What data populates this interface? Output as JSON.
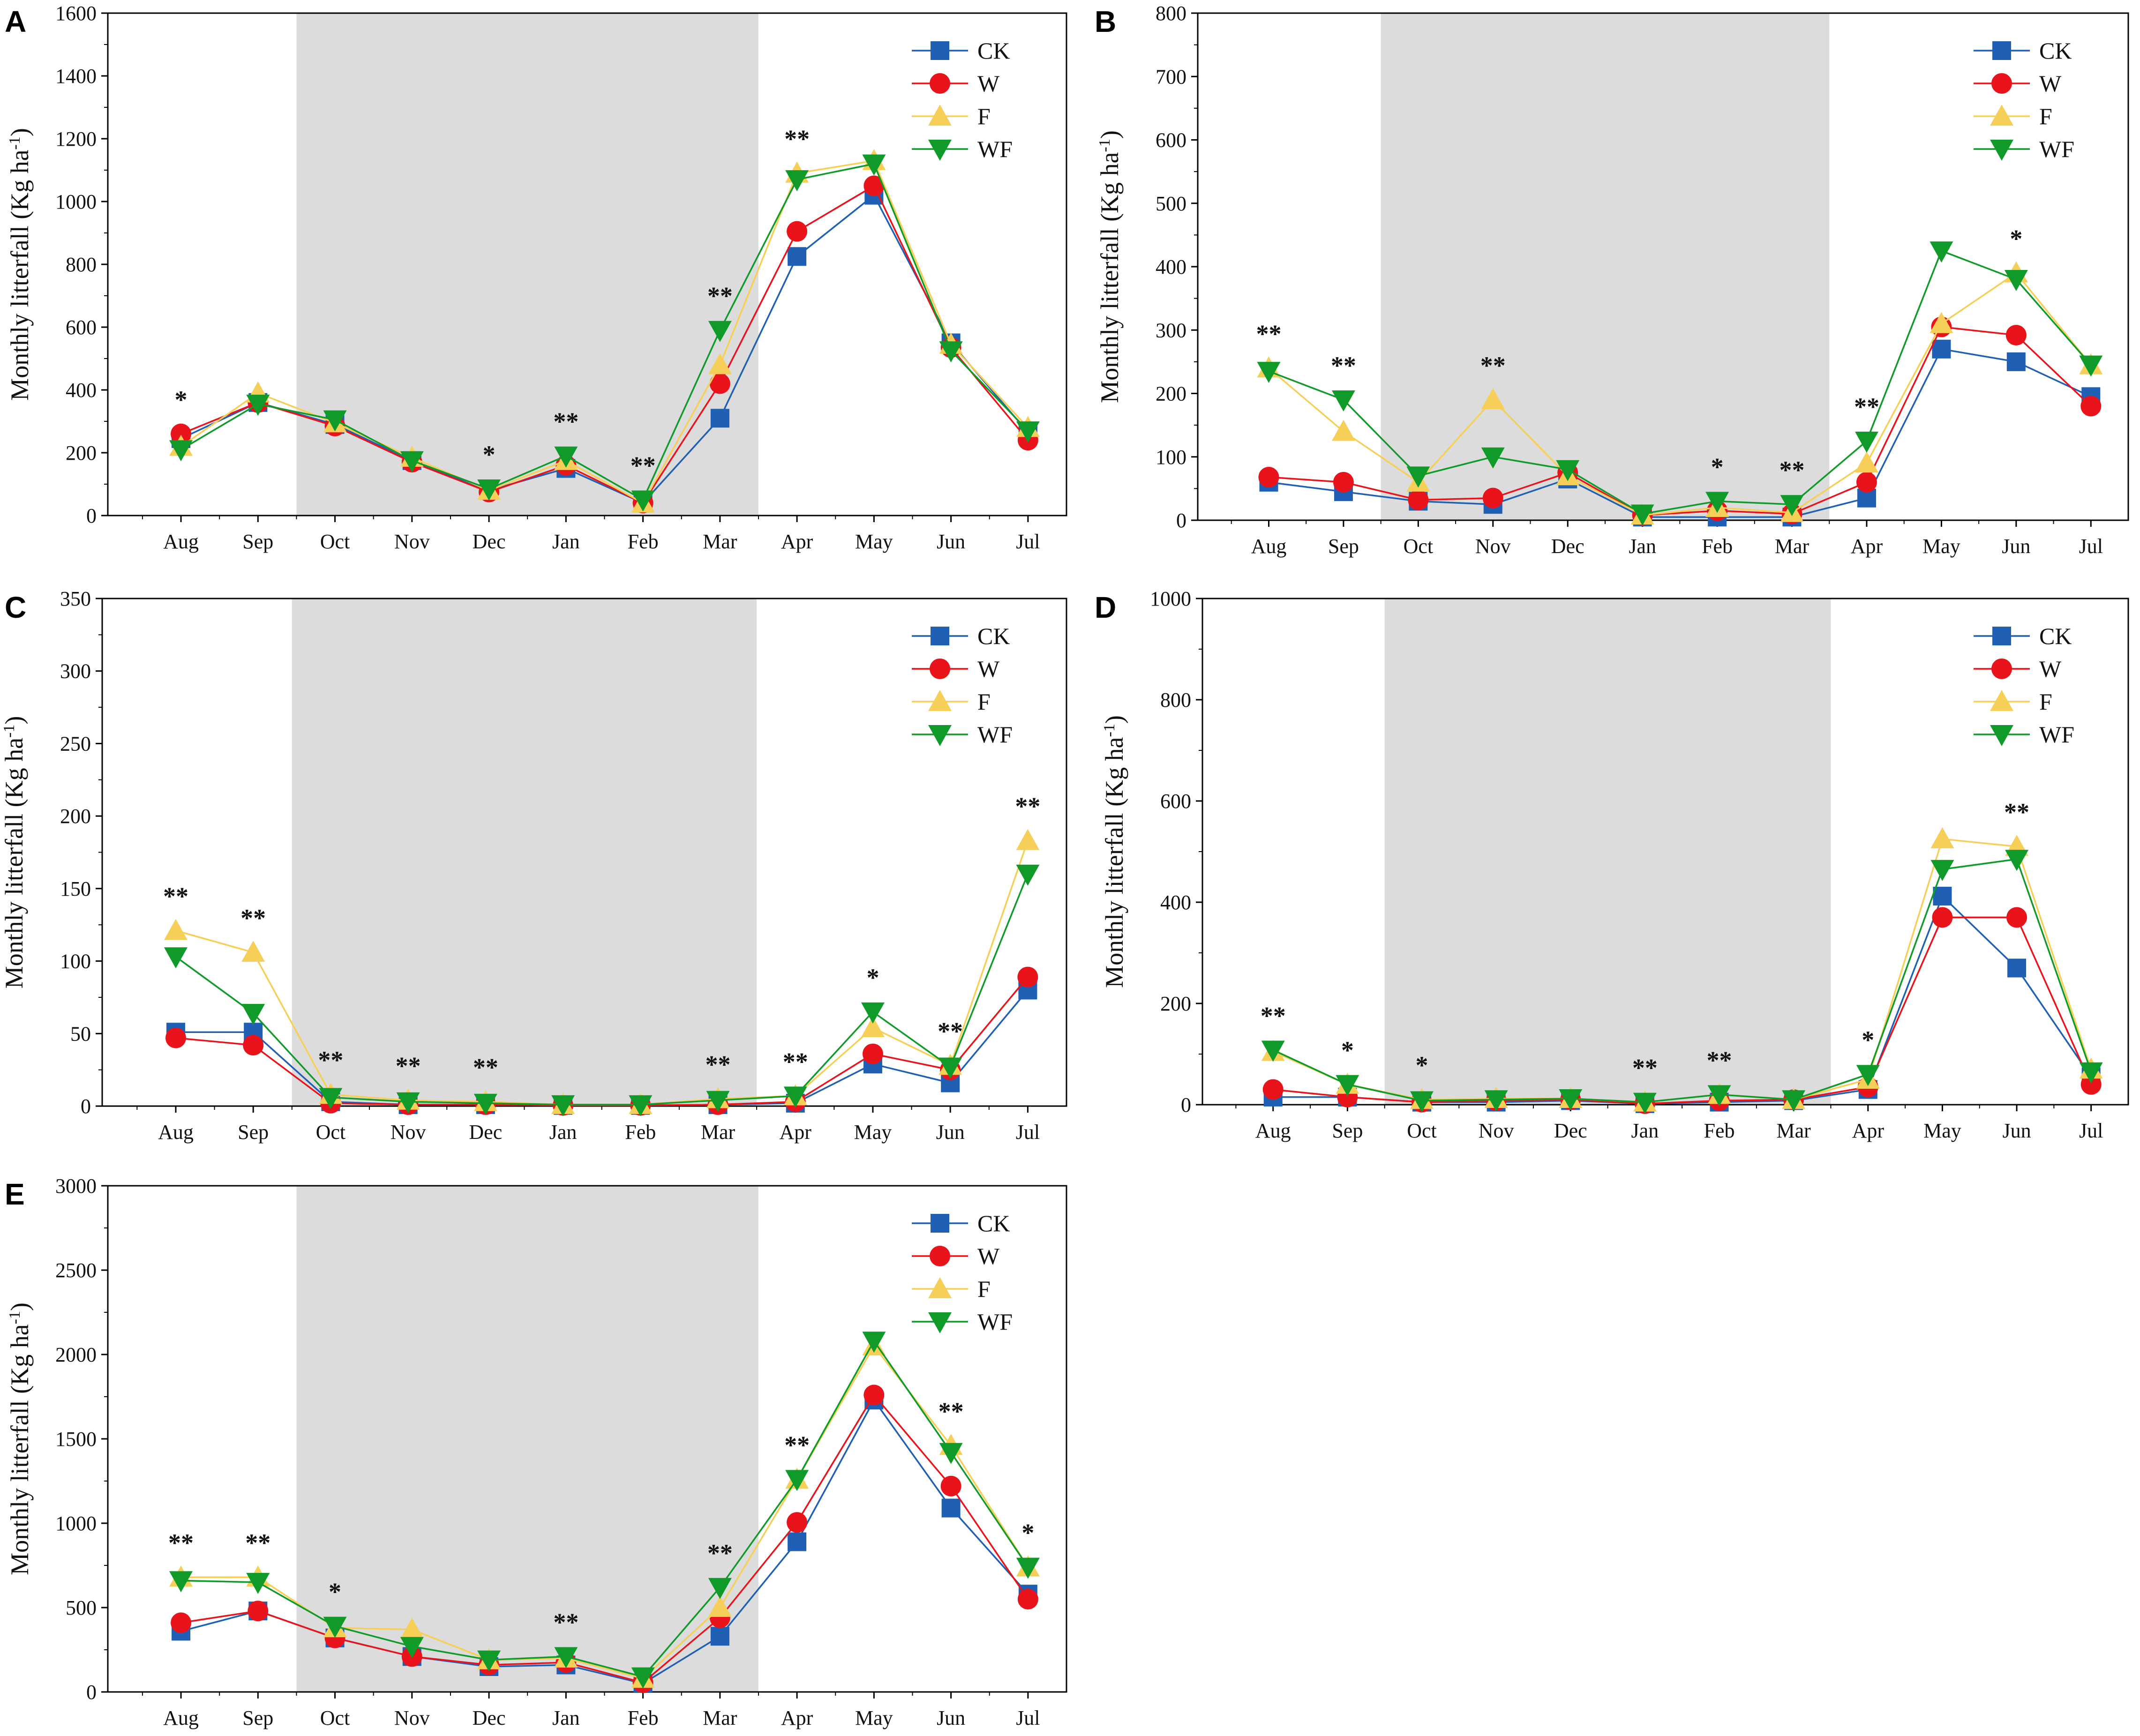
{
  "figure": {
    "months": [
      "Aug",
      "Sep",
      "Oct",
      "Nov",
      "Dec",
      "Jan",
      "Feb",
      "Mar",
      "Apr",
      "May",
      "Jun",
      "Jul"
    ],
    "ylabel_main": "Monthly litterfall (Kg ha",
    "ylabel_sup": "-1",
    "ylabel_close": ")",
    "shade_months": [
      "Oct",
      "Mar"
    ]
  },
  "legend": [
    {
      "name": "CK",
      "color": "#1f5fb4",
      "marker": "square"
    },
    {
      "name": "W",
      "color": "#e8131b",
      "marker": "circle"
    },
    {
      "name": "F",
      "color": "#f5cf57",
      "marker": "triangle-up"
    },
    {
      "name": "WF",
      "color": "#0f9a2a",
      "marker": "triangle-down"
    }
  ],
  "chart_data": [
    {
      "panel": "A",
      "type": "line",
      "ylim": [
        0,
        1600
      ],
      "yticks": [
        "0",
        "200",
        "400",
        "600",
        "800",
        "1000",
        "1200",
        "1400",
        "1600"
      ],
      "series": [
        {
          "name": "CK",
          "values": [
            245,
            360,
            290,
            175,
            80,
            150,
            40,
            310,
            825,
            1020,
            550,
            265
          ]
        },
        {
          "name": "W",
          "values": [
            260,
            360,
            285,
            170,
            75,
            160,
            40,
            420,
            905,
            1050,
            535,
            240
          ]
        },
        {
          "name": "F",
          "values": [
            220,
            390,
            295,
            185,
            80,
            175,
            40,
            480,
            1090,
            1130,
            545,
            280
          ]
        },
        {
          "name": "WF",
          "values": [
            210,
            355,
            305,
            175,
            85,
            190,
            50,
            590,
            1070,
            1120,
            525,
            270
          ]
        }
      ],
      "significance": [
        {
          "month": "Aug",
          "label": "*"
        },
        {
          "month": "Dec",
          "label": "*"
        },
        {
          "month": "Jan",
          "label": "**"
        },
        {
          "month": "Feb",
          "label": "**"
        },
        {
          "month": "Mar",
          "label": "**"
        },
        {
          "month": "Apr",
          "label": "**"
        }
      ]
    },
    {
      "panel": "B",
      "type": "line",
      "ylim": [
        0,
        800
      ],
      "yticks": [
        "0",
        "100",
        "200",
        "300",
        "400",
        "500",
        "600",
        "700",
        "800"
      ],
      "series": [
        {
          "name": "CK",
          "values": [
            60,
            45,
            30,
            25,
            65,
            5,
            5,
            5,
            35,
            270,
            250,
            195
          ]
        },
        {
          "name": "W",
          "values": [
            68,
            60,
            32,
            35,
            75,
            8,
            15,
            10,
            60,
            305,
            292,
            180
          ]
        },
        {
          "name": "F",
          "values": [
            240,
            140,
            60,
            190,
            70,
            8,
            20,
            12,
            90,
            310,
            390,
            245
          ]
        },
        {
          "name": "WF",
          "values": [
            235,
            190,
            70,
            100,
            80,
            10,
            30,
            25,
            125,
            425,
            380,
            245
          ]
        }
      ],
      "significance": [
        {
          "month": "Aug",
          "label": "**"
        },
        {
          "month": "Sep",
          "label": "**"
        },
        {
          "month": "Nov",
          "label": "**"
        },
        {
          "month": "Feb",
          "label": "*"
        },
        {
          "month": "Mar",
          "label": "**"
        },
        {
          "month": "Apr",
          "label": "**"
        },
        {
          "month": "Jun",
          "label": "*"
        }
      ]
    },
    {
      "panel": "C",
      "type": "line",
      "ylim": [
        0,
        350
      ],
      "yticks": [
        "0",
        "50",
        "100",
        "150",
        "200",
        "250",
        "300",
        "350"
      ],
      "series": [
        {
          "name": "CK",
          "values": [
            51,
            51,
            3,
            1,
            1,
            0.5,
            0.5,
            1,
            2,
            29,
            16,
            80
          ]
        },
        {
          "name": "W",
          "values": [
            47,
            42,
            2,
            1,
            1,
            0.5,
            0.5,
            1,
            3,
            36,
            25,
            89
          ]
        },
        {
          "name": "F",
          "values": [
            121,
            106,
            8,
            4,
            3,
            1,
            1,
            5,
            7,
            54,
            28,
            183
          ]
        },
        {
          "name": "WF",
          "values": [
            103,
            64,
            6,
            3,
            2,
            1,
            1,
            4,
            7,
            65,
            27,
            160
          ]
        }
      ],
      "significance": [
        {
          "month": "Aug",
          "label": "**"
        },
        {
          "month": "Sep",
          "label": "**"
        },
        {
          "month": "Oct",
          "label": "**"
        },
        {
          "month": "Nov",
          "label": "**"
        },
        {
          "month": "Dec",
          "label": "**"
        },
        {
          "month": "Mar",
          "label": "**"
        },
        {
          "month": "Apr",
          "label": "**"
        },
        {
          "month": "May",
          "label": "*"
        },
        {
          "month": "Jun",
          "label": "**"
        },
        {
          "month": "Jul",
          "label": "**"
        }
      ]
    },
    {
      "panel": "D",
      "type": "line",
      "ylim": [
        0,
        1000
      ],
      "yticks": [
        "0",
        "200",
        "400",
        "600",
        "800",
        "1000"
      ],
      "series": [
        {
          "name": "CK",
          "values": [
            15,
            15,
            5,
            5,
            8,
            2,
            5,
            8,
            30,
            412,
            270,
            55
          ]
        },
        {
          "name": "W",
          "values": [
            30,
            15,
            5,
            8,
            10,
            2,
            8,
            10,
            35,
            370,
            370,
            40
          ]
        },
        {
          "name": "F",
          "values": [
            105,
            40,
            10,
            12,
            12,
            5,
            20,
            10,
            50,
            525,
            510,
            70
          ]
        },
        {
          "name": "WF",
          "values": [
            108,
            40,
            8,
            10,
            12,
            5,
            20,
            10,
            60,
            465,
            485,
            65
          ]
        }
      ],
      "significance": [
        {
          "month": "Aug",
          "label": "**"
        },
        {
          "month": "Sep",
          "label": "*"
        },
        {
          "month": "Oct",
          "label": "*"
        },
        {
          "month": "Jan",
          "label": "**"
        },
        {
          "month": "Feb",
          "label": "**"
        },
        {
          "month": "Apr",
          "label": "*"
        },
        {
          "month": "Jun",
          "label": "**"
        }
      ]
    },
    {
      "panel": "E",
      "type": "line",
      "ylim": [
        0,
        3000
      ],
      "yticks": [
        "0",
        "500",
        "1000",
        "1500",
        "2000",
        "2500",
        "3000"
      ],
      "series": [
        {
          "name": "CK",
          "values": [
            360,
            480,
            320,
            210,
            150,
            160,
            50,
            330,
            890,
            1730,
            1090,
            580
          ]
        },
        {
          "name": "W",
          "values": [
            410,
            480,
            320,
            210,
            160,
            175,
            55,
            440,
            1005,
            1760,
            1220,
            550
          ]
        },
        {
          "name": "F",
          "values": [
            680,
            680,
            380,
            370,
            190,
            200,
            80,
            500,
            1260,
            2050,
            1460,
            740
          ]
        },
        {
          "name": "WF",
          "values": [
            660,
            650,
            390,
            270,
            190,
            210,
            90,
            620,
            1260,
            2080,
            1420,
            740
          ]
        }
      ],
      "significance": [
        {
          "month": "Aug",
          "label": "**"
        },
        {
          "month": "Sep",
          "label": "**"
        },
        {
          "month": "Oct",
          "label": "*"
        },
        {
          "month": "Jan",
          "label": "**"
        },
        {
          "month": "Mar",
          "label": "**"
        },
        {
          "month": "Apr",
          "label": "**"
        },
        {
          "month": "Jun",
          "label": "**"
        },
        {
          "month": "Jul",
          "label": "*"
        }
      ]
    }
  ]
}
